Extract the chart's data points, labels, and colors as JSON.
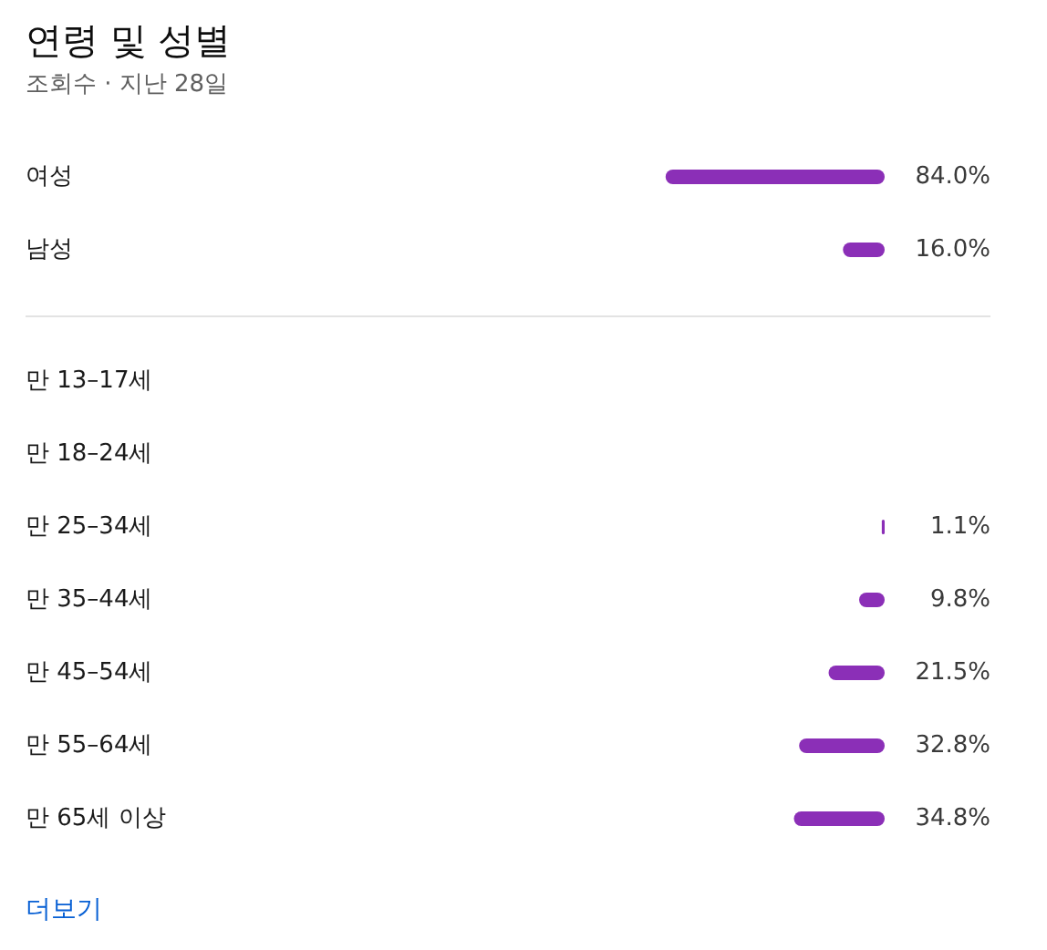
{
  "chart_data": [
    {
      "type": "bar",
      "title": "연령 및 성별",
      "subtitle": "조회수 · 지난 28일",
      "orientation": "horizontal",
      "categories": [
        "여성",
        "남성"
      ],
      "values": [
        84.0,
        16.0
      ],
      "value_labels": [
        "84.0%",
        "16.0%"
      ],
      "color": "#8b2fb7"
    },
    {
      "type": "bar",
      "orientation": "horizontal",
      "categories": [
        "만 13–17세",
        "만 18–24세",
        "만 25–34세",
        "만 35–44세",
        "만 45–54세",
        "만 55–64세",
        "만 65세 이상"
      ],
      "values": [
        null,
        null,
        1.1,
        9.8,
        21.5,
        32.8,
        34.8
      ],
      "value_labels": [
        null,
        null,
        "1.1%",
        "9.8%",
        "21.5%",
        "32.8%",
        "34.8%"
      ],
      "color": "#8b2fb7",
      "annotations": [
        "더보기"
      ]
    }
  ]
}
